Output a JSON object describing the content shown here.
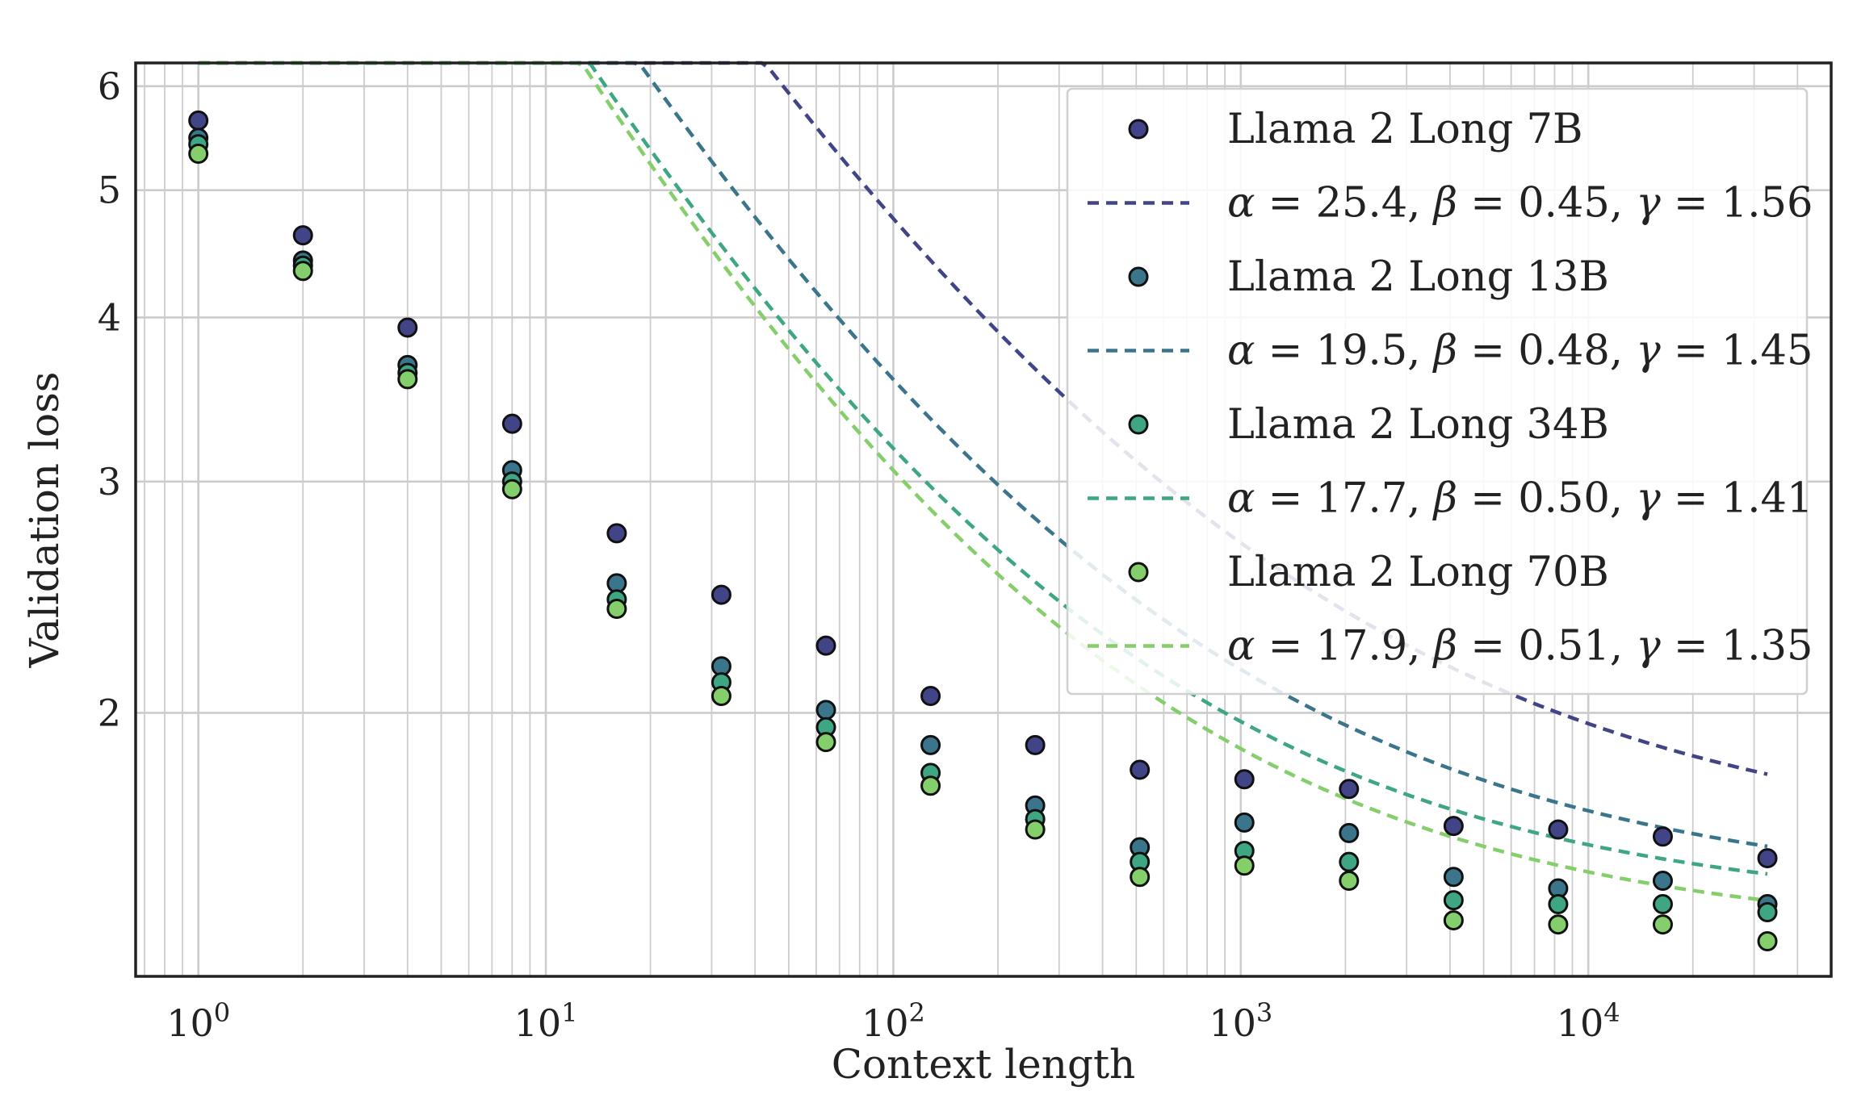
{
  "chart_data": {
    "type": "scatter",
    "title": "",
    "xlabel": "Context length",
    "ylabel": "Validation loss",
    "xscale": "log",
    "yscale": "log",
    "xlim": [
      0.66,
      50000
    ],
    "ylim": [
      1.26,
      6.25
    ],
    "grid": true,
    "legend_position": "top-right",
    "x_ticks": [
      {
        "value": 1,
        "base": "10",
        "exp": "0"
      },
      {
        "value": 10,
        "base": "10",
        "exp": "1"
      },
      {
        "value": 100,
        "base": "10",
        "exp": "2"
      },
      {
        "value": 1000,
        "base": "10",
        "exp": "3"
      },
      {
        "value": 10000,
        "base": "10",
        "exp": "4"
      }
    ],
    "y_ticks": [
      {
        "value": 2,
        "label": "2"
      },
      {
        "value": 3,
        "label": "3"
      },
      {
        "value": 4,
        "label": "4"
      },
      {
        "value": 5,
        "label": "5"
      },
      {
        "value": 6,
        "label": "6"
      }
    ],
    "x": [
      1,
      2,
      4,
      8,
      16,
      32,
      64,
      128,
      256,
      512,
      1024,
      2048,
      4096,
      8192,
      16384,
      32768
    ],
    "series": [
      {
        "name": "Llama 2 Long 7B",
        "color": "#414487",
        "values": [
          5.65,
          4.62,
          3.93,
          3.32,
          2.74,
          2.46,
          2.25,
          2.06,
          1.89,
          1.81,
          1.78,
          1.75,
          1.64,
          1.63,
          1.61,
          1.55
        ],
        "fit_label": {
          "alpha": "25.4",
          "beta": "0.45",
          "gamma": "1.56"
        },
        "fit": {
          "alpha": 25.4,
          "beta": 0.45,
          "gamma": 1.56
        }
      },
      {
        "name": "Llama 2 Long  13B",
        "color": "#3b758c",
        "values": [
          5.48,
          4.42,
          3.68,
          3.06,
          2.51,
          2.17,
          2.01,
          1.89,
          1.7,
          1.58,
          1.65,
          1.62,
          1.5,
          1.47,
          1.49,
          1.43
        ],
        "fit_label": {
          "alpha": "19.5",
          "beta": "0.48",
          "gamma": "1.45"
        },
        "fit": {
          "alpha": 19.5,
          "beta": 0.48,
          "gamma": 1.45
        }
      },
      {
        "name": "Llama 2 Long  34B",
        "color": "#3fa683",
        "values": [
          5.42,
          4.38,
          3.63,
          3.0,
          2.44,
          2.11,
          1.95,
          1.8,
          1.66,
          1.54,
          1.57,
          1.54,
          1.44,
          1.43,
          1.43,
          1.41
        ],
        "fit_label": {
          "alpha": "17.7",
          "beta": "0.50",
          "gamma": "1.41"
        },
        "fit": {
          "alpha": 17.7,
          "beta": 0.5,
          "gamma": 1.41
        }
      },
      {
        "name": "Llama 2 Long  70B",
        "color": "#84cf6b",
        "values": [
          5.33,
          4.34,
          3.59,
          2.96,
          2.4,
          2.06,
          1.9,
          1.76,
          1.63,
          1.5,
          1.53,
          1.49,
          1.39,
          1.38,
          1.38,
          1.34
        ],
        "fit_label": {
          "alpha": "17.9",
          "beta": "0.51",
          "gamma": "1.35"
        },
        "fit": {
          "alpha": 17.9,
          "beta": 0.51,
          "gamma": 1.35
        }
      }
    ]
  }
}
